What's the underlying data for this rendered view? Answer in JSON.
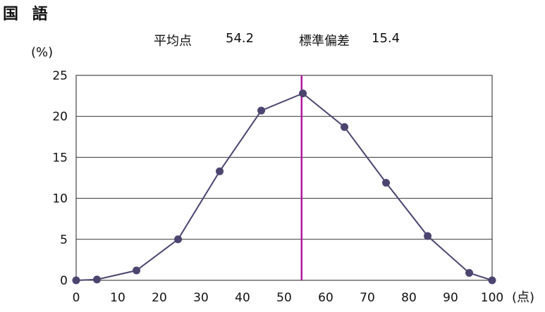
{
  "header": {
    "subject": "国 語",
    "mean_label": "平均点",
    "mean_value": "54.2",
    "sd_label": "標準偏差",
    "sd_value": "15.4"
  },
  "chart_data": {
    "type": "line",
    "title": "",
    "ylabel": "(%)",
    "xlabel": "(点)",
    "xlim": [
      0,
      100
    ],
    "ylim": [
      0,
      25
    ],
    "xticks": [
      0,
      10,
      20,
      30,
      40,
      50,
      60,
      70,
      80,
      90,
      100
    ],
    "yticks": [
      0,
      5,
      10,
      15,
      20,
      25
    ],
    "grid": "horizontal",
    "series": [
      {
        "x": [
          0,
          5,
          14.5,
          24.5,
          34.5,
          44.5,
          54.5,
          64.5,
          74.5,
          84.5,
          94.5,
          100
        ],
        "y": [
          0,
          0.1,
          1.2,
          5.0,
          13.3,
          20.7,
          22.8,
          18.7,
          11.9,
          5.4,
          0.9,
          0
        ],
        "color": "#4b4570"
      }
    ],
    "mean_line": {
      "x": 54.2,
      "color": "#b0189c"
    }
  }
}
